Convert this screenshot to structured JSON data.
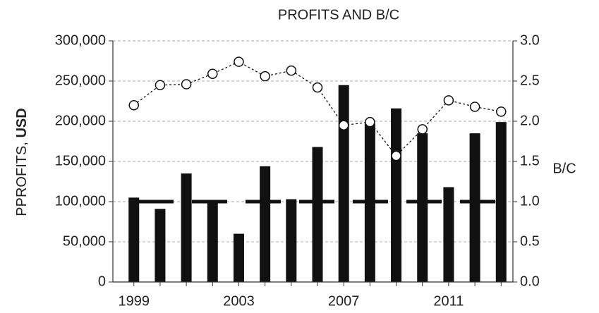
{
  "chart_data": {
    "type": "bar_line",
    "title": "PROFITS AND B/C",
    "ylabel": {
      "text": "PPROFITS,",
      "unit": "USD"
    },
    "y2label": "B/C",
    "x": [
      1999,
      2000,
      2001,
      2002,
      2003,
      2004,
      2005,
      2006,
      2007,
      2008,
      2009,
      2010,
      2011,
      2012,
      2013
    ],
    "xlim": [
      1998.2,
      2013.45
    ],
    "xticks": [
      1999,
      2003,
      2007,
      2011
    ],
    "ylim": [
      0,
      300000
    ],
    "yticks": [
      0,
      {
        "value": 50000,
        "label": "50,000"
      },
      {
        "value": 100000,
        "label": "100,000"
      },
      {
        "value": 150000,
        "label": "150,000"
      },
      {
        "value": 200000,
        "label": "200,000"
      },
      {
        "value": 250000,
        "label": "250,000"
      },
      {
        "value": 300000,
        "label": "300,000"
      }
    ],
    "y2lim": [
      0,
      3
    ],
    "y2ticks": [
      {
        "value": 0,
        "label": "0.0"
      },
      0.5,
      {
        "value": 1,
        "label": "1.0"
      },
      1.5,
      {
        "value": 2,
        "label": "2.0"
      },
      2.5,
      {
        "value": 3,
        "label": "3.0"
      }
    ],
    "grid": true,
    "series": [
      {
        "name": "Profits",
        "kind": "bar",
        "color": "#111111",
        "values": [
          105000,
          91000,
          135000,
          100000,
          60000,
          144000,
          103000,
          168000,
          245000,
          197000,
          216000,
          185000,
          118000,
          185000,
          199000
        ]
      },
      {
        "name": "B/C",
        "kind": "line",
        "axis": "y2",
        "color": "#111111",
        "values": [
          2.2,
          2.45,
          2.46,
          2.59,
          2.74,
          2.56,
          2.63,
          2.42,
          1.95,
          1.99,
          1.57,
          1.9,
          2.26,
          2.18,
          2.12
        ]
      }
    ],
    "reference_line": {
      "value": 1,
      "axis": "y2",
      "color": "#111111"
    }
  }
}
